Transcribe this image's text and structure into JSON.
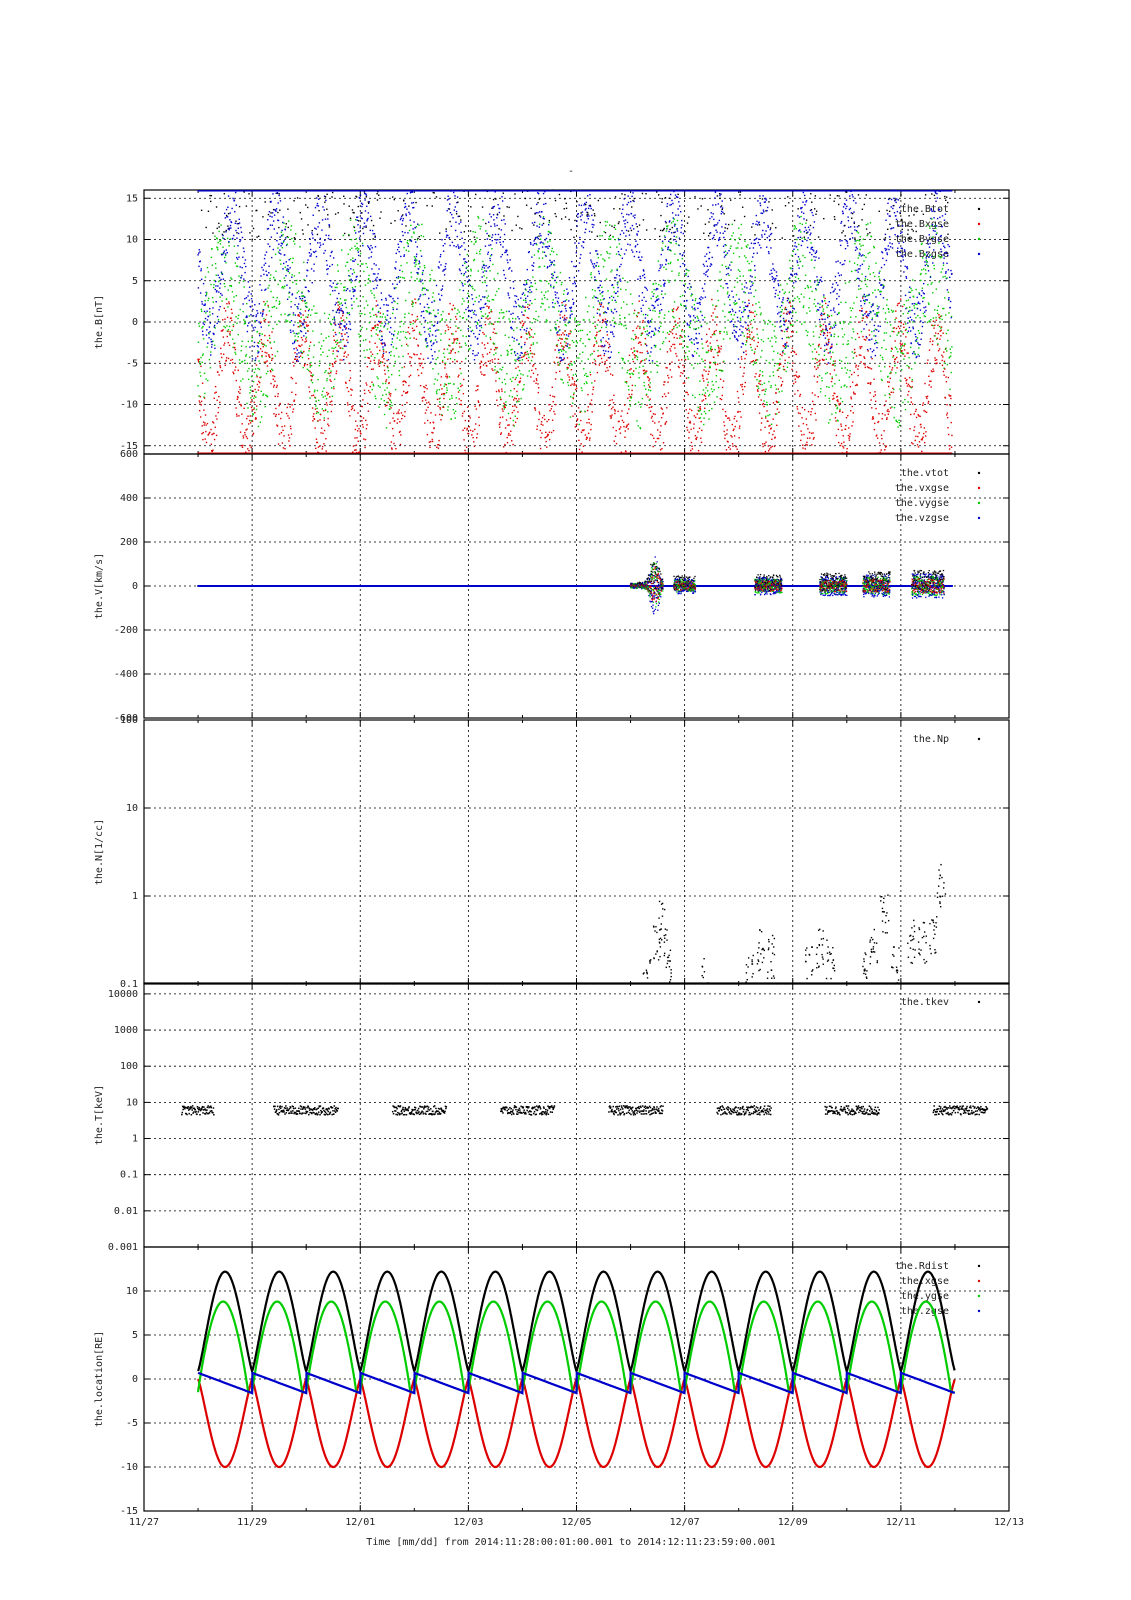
{
  "title_mark": "-",
  "footer": {
    "xlabel": "Time [mm/dd]  from 2014:11:28:00:01:00.001  to  2014:12:11:23:59:00.001"
  },
  "chart_data": [
    {
      "type": "scatter",
      "panel": "B",
      "ylabel": "the.B[nT]",
      "ylim": [
        -16,
        16
      ],
      "yticks": [
        15,
        10,
        5,
        0,
        -5,
        -10,
        -15
      ],
      "yticklabels": [
        "15",
        "10",
        "5",
        "0",
        "-5",
        "-10",
        "-15"
      ],
      "x_range_days": [
        0,
        16
      ],
      "xticks_days": [
        0,
        2,
        4,
        6,
        8,
        10,
        12,
        14,
        16
      ],
      "xticklabels": [
        "11/27",
        "11/29",
        "12/01",
        "12/03",
        "12/05",
        "12/07",
        "12/09",
        "12/11",
        "12/13"
      ],
      "grid": true,
      "legend_placement": "top-right",
      "series": [
        {
          "name": "the.Btot",
          "color": "#000000",
          "description": "sparse, mostly at top clip"
        },
        {
          "name": "the.Bxgse",
          "color": "#dd0000"
        },
        {
          "name": "the.Bygse",
          "color": "#00cc00"
        },
        {
          "name": "the.Bzgse",
          "color": "#0000cc"
        }
      ]
    },
    {
      "type": "scatter",
      "panel": "V",
      "ylabel": "the.V[km/s]",
      "ylim": [
        -600,
        600
      ],
      "yticks": [
        600,
        400,
        200,
        0,
        -200,
        -400,
        -600
      ],
      "yticklabels": [
        "600",
        "400",
        "200",
        "0",
        "-200",
        "-400",
        "-600"
      ],
      "x_range_days": [
        0,
        16
      ],
      "grid": true,
      "legend_placement": "top-right",
      "series": [
        {
          "name": "the.vtot",
          "color": "#000000"
        },
        {
          "name": "the.vxgse",
          "color": "#dd0000"
        },
        {
          "name": "the.vygse",
          "color": "#00cc00"
        },
        {
          "name": "the.vzgse",
          "color": "#0000cc"
        }
      ],
      "active_intervals_days": [
        [
          9.0,
          9.6
        ],
        [
          9.8,
          10.2
        ],
        [
          11.3,
          11.8
        ],
        [
          12.5,
          13.0
        ],
        [
          13.3,
          13.8
        ],
        [
          14.2,
          14.8
        ]
      ]
    },
    {
      "type": "scatter",
      "panel": "N",
      "ylabel": "the.N[1/cc]",
      "yscale": "log",
      "ylim": [
        0.1,
        100
      ],
      "yticks": [
        100,
        10,
        1,
        0.1
      ],
      "yticklabels": [
        "100",
        "10",
        "1",
        "0.1"
      ],
      "x_range_days": [
        0,
        16
      ],
      "grid": true,
      "legend_placement": "top-right",
      "series": [
        {
          "name": "the.Np",
          "color": "#000000",
          "x": [
            9.3,
            9.5,
            9.6,
            9.7,
            10.4,
            11.2,
            11.4,
            11.6,
            12.3,
            12.5,
            12.7,
            13.3,
            13.5,
            13.7,
            13.9,
            14.2,
            14.4,
            14.6,
            14.75
          ],
          "y": [
            0.12,
            0.3,
            0.5,
            0.15,
            0.11,
            0.12,
            0.25,
            0.2,
            0.15,
            0.25,
            0.2,
            0.15,
            0.3,
            0.6,
            0.15,
            0.3,
            0.3,
            0.35,
            1.3
          ]
        }
      ]
    },
    {
      "type": "scatter",
      "panel": "T",
      "ylabel": "the.T[keV]",
      "yscale": "log",
      "ylim": [
        0.001,
        20000
      ],
      "yticks": [
        10000,
        1000,
        100,
        10,
        1,
        0.1,
        0.01,
        0.001
      ],
      "yticklabels": [
        "10000",
        "1000",
        "100",
        "10",
        "1",
        "0.1",
        "0.01",
        "0.001"
      ],
      "x_range_days": [
        0,
        16
      ],
      "grid": true,
      "legend_placement": "top-right",
      "series": [
        {
          "name": "the.tkev",
          "color": "#000000",
          "segments_days": [
            [
              0.7,
              1.3
            ],
            [
              2.4,
              3.6
            ],
            [
              4.6,
              5.6
            ],
            [
              6.6,
              7.6
            ],
            [
              8.6,
              9.6
            ],
            [
              10.6,
              11.6
            ],
            [
              12.6,
              13.6
            ],
            [
              14.6,
              15.6
            ]
          ],
          "typical_value": 6
        }
      ]
    },
    {
      "type": "line",
      "panel": "location",
      "ylabel": "the.location[RE]",
      "ylim": [
        -15,
        15
      ],
      "yticks": [
        10,
        5,
        0,
        -5,
        -10,
        -15
      ],
      "yticklabels": [
        "10",
        "5",
        "0",
        "-5",
        "-10",
        "-15"
      ],
      "x_range_days": [
        0,
        16
      ],
      "grid": true,
      "legend_placement": "top-right",
      "orbit_period_days": 1.0,
      "orbit_start_day": 1.0,
      "orbit_end_day": 15.0,
      "series": [
        {
          "name": "the.Rdist",
          "color": "#000000",
          "min": 0.9,
          "max": 12.2
        },
        {
          "name": "the.xgse",
          "color": "#dd0000",
          "min": -10.0,
          "max": 0.0
        },
        {
          "name": "the.ygse",
          "color": "#00cc00",
          "min": -1.5,
          "max": 8.8
        },
        {
          "name": "the.zgse",
          "color": "#0000cc",
          "min": -1.6,
          "max": 0.7
        }
      ]
    }
  ]
}
